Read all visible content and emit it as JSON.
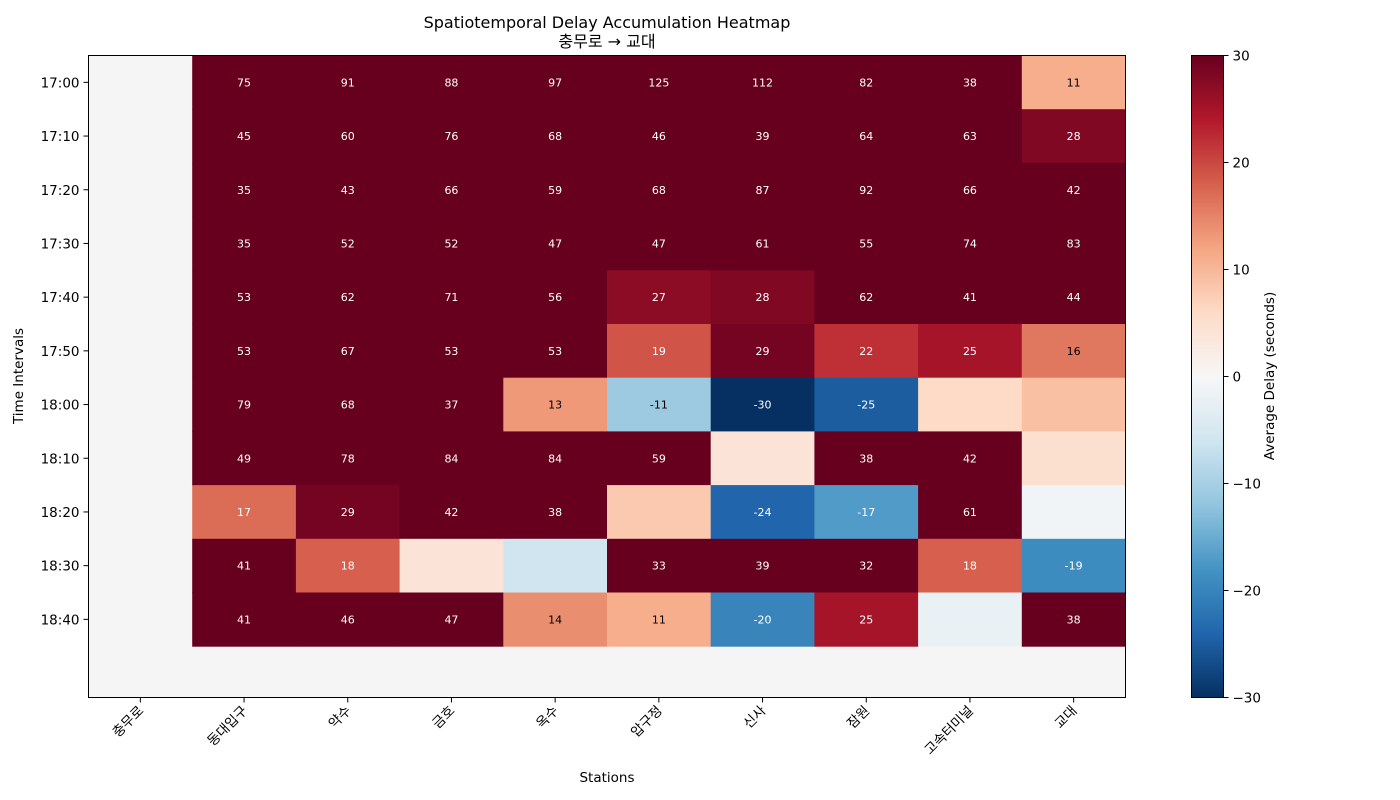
{
  "chart_data": {
    "type": "heatmap",
    "title": "Spatiotemporal Delay Accumulation Heatmap",
    "subtitle": "충무로 → 교대",
    "xlabel": "Stations",
    "ylabel": "Time Intervals",
    "colorbar_label": "Average Delay (seconds)",
    "colormap": "RdBu_r",
    "vmin": -30,
    "vmax": 30,
    "colorbar_ticks": [
      "30",
      "20",
      "10",
      "0",
      "−10",
      "−20",
      "−30"
    ],
    "colorbar_tick_values": [
      30,
      20,
      10,
      0,
      -10,
      -20,
      -30
    ],
    "nan_color": "#f5f5f5",
    "x": [
      "충무로",
      "동대입구",
      "약수",
      "금호",
      "옥수",
      "압구정",
      "신사",
      "잠원",
      "고속터미널",
      "교대"
    ],
    "y": [
      "17:00",
      "17:10",
      "17:20",
      "17:30",
      "17:40",
      "17:50",
      "18:00",
      "18:10",
      "18:20",
      "18:30",
      "18:40"
    ],
    "values": [
      [
        null,
        75,
        91,
        88,
        97,
        125,
        112,
        82,
        38,
        11
      ],
      [
        null,
        45,
        60,
        76,
        68,
        46,
        39,
        64,
        63,
        28
      ],
      [
        null,
        35,
        43,
        66,
        59,
        68,
        87,
        92,
        66,
        42
      ],
      [
        null,
        35,
        52,
        52,
        47,
        47,
        61,
        55,
        74,
        83
      ],
      [
        null,
        53,
        62,
        71,
        56,
        27,
        28,
        62,
        41,
        44
      ],
      [
        null,
        53,
        67,
        53,
        53,
        19,
        29,
        22,
        25,
        16
      ],
      [
        null,
        79,
        68,
        37,
        13,
        -11,
        -30,
        -25,
        6,
        9
      ],
      [
        null,
        49,
        78,
        84,
        84,
        59,
        4,
        38,
        42,
        5
      ],
      [
        null,
        17,
        29,
        42,
        38,
        8,
        -24,
        -17,
        61,
        -1
      ],
      [
        null,
        41,
        18,
        4,
        -6,
        33,
        39,
        32,
        18,
        -19
      ],
      [
        null,
        41,
        46,
        47,
        14,
        11,
        -20,
        25,
        -2,
        38
      ]
    ],
    "labels": [
      [
        "",
        "75",
        "91",
        "88",
        "97",
        "125",
        "112",
        "82",
        "38",
        "11"
      ],
      [
        "",
        "45",
        "60",
        "76",
        "68",
        "46",
        "39",
        "64",
        "63",
        "28"
      ],
      [
        "",
        "35",
        "43",
        "66",
        "59",
        "68",
        "87",
        "92",
        "66",
        "42"
      ],
      [
        "",
        "35",
        "52",
        "52",
        "47",
        "47",
        "61",
        "55",
        "74",
        "83"
      ],
      [
        "",
        "53",
        "62",
        "71",
        "56",
        "27",
        "28",
        "62",
        "41",
        "44"
      ],
      [
        "",
        "53",
        "67",
        "53",
        "53",
        "19",
        "29",
        "22",
        "25",
        "16"
      ],
      [
        "",
        "79",
        "68",
        "37",
        "13",
        "-11",
        "-30",
        "-25",
        "",
        ""
      ],
      [
        "",
        "49",
        "78",
        "84",
        "84",
        "59",
        "",
        "38",
        "42",
        ""
      ],
      [
        "",
        "17",
        "29",
        "42",
        "38",
        "",
        "-24",
        "-17",
        "61",
        ""
      ],
      [
        "",
        "41",
        "18",
        "",
        "",
        "33",
        "39",
        "32",
        "18",
        "-19"
      ],
      [
        "",
        "41",
        "46",
        "47",
        "14",
        "11",
        "-20",
        "25",
        "",
        "38"
      ]
    ]
  }
}
